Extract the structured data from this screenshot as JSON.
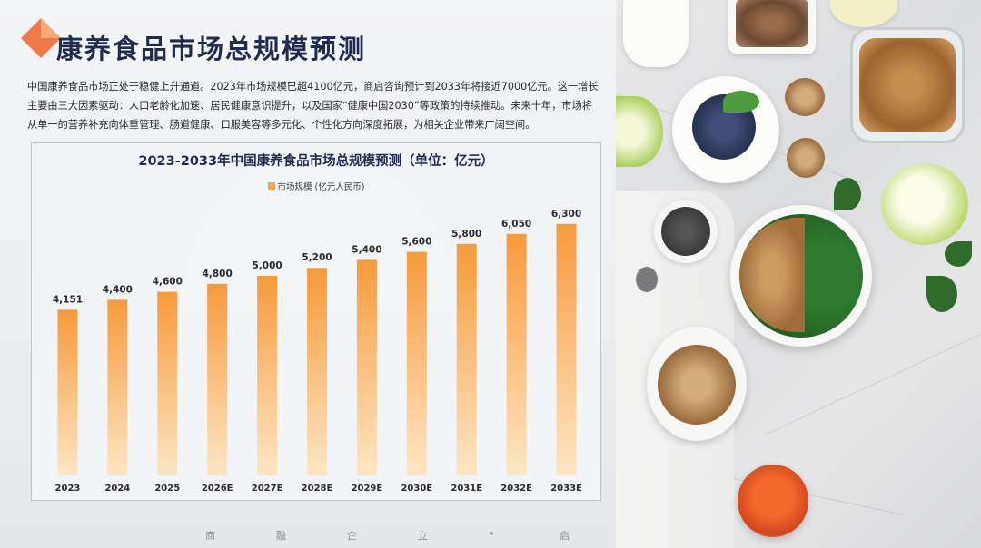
{
  "page": {
    "title": "康养食品市场总规模预测",
    "intro": "中国康养食品市场正处于稳健上升通道。2023年市场规模已超4100亿元，商启咨询预计到2033年将接近7000亿元。这一增长主要由三大因素驱动：人口老龄化加速、居民健康意识提升，以及国家“健康中国2030”等政策的持续推动。未来十年，市场将从单一的营养补充向体重管理、肠道健康、口服美容等多元化、个性化方向深度拓展，为相关企业带来广阔空间。",
    "footer": [
      "商",
      "融",
      "企",
      "立",
      "•",
      "启"
    ]
  },
  "colors": {
    "title": "#1f2c50",
    "bar_top": "#f79a3c",
    "bar_bottom": "#fde6c4",
    "logo_a": "#f0794a",
    "logo_b": "#f7b27a"
  },
  "chart_data": {
    "type": "bar",
    "title": "2023-2033年中国康养食品市场总规模预测（单位：亿元）",
    "categories": [
      "2023",
      "2024",
      "2025",
      "2026E",
      "2027E",
      "2028E",
      "2029E",
      "2030E",
      "2031E",
      "2032E",
      "2033E"
    ],
    "series": [
      {
        "name": "市场规模 (亿元人民币)",
        "values": [
          4151,
          4400,
          4600,
          4800,
          5000,
          5200,
          5400,
          5600,
          5800,
          6050,
          6300
        ]
      }
    ],
    "data_labels": [
      "4,151",
      "4,400",
      "4,600",
      "4,800",
      "5,000",
      "5,200",
      "5,400",
      "5,600",
      "5,800",
      "6,050",
      "6,300"
    ],
    "ylim": [
      0,
      6500
    ],
    "grid": false,
    "legend_position": "top-center"
  }
}
